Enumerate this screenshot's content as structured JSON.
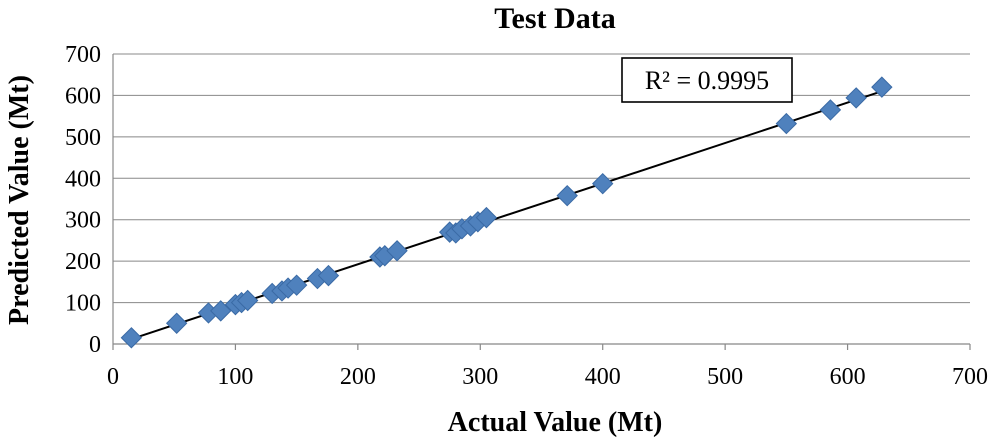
{
  "chart_data": {
    "type": "scatter",
    "title": "Test Data",
    "xlabel": "Actual Value (Mt)",
    "ylabel": "Predicted Value (Mt)",
    "xlim": [
      0,
      700
    ],
    "ylim": [
      0,
      700
    ],
    "xticks": [
      0,
      100,
      200,
      300,
      400,
      500,
      600,
      700
    ],
    "yticks": [
      0,
      100,
      200,
      300,
      400,
      500,
      600,
      700
    ],
    "grid": "horizontal",
    "marker_color": "#4F81BD",
    "marker_edge_color": "#3A6AA5",
    "trendline": {
      "type": "linear",
      "from": [
        15,
        12
      ],
      "to": [
        630,
        612
      ],
      "color": "#000000"
    },
    "annotation": "R² = 0.9995",
    "points": [
      [
        15,
        15
      ],
      [
        52,
        50
      ],
      [
        78,
        75
      ],
      [
        88,
        80
      ],
      [
        100,
        95
      ],
      [
        105,
        100
      ],
      [
        110,
        105
      ],
      [
        130,
        122
      ],
      [
        138,
        128
      ],
      [
        143,
        135
      ],
      [
        150,
        142
      ],
      [
        167,
        158
      ],
      [
        176,
        165
      ],
      [
        218,
        210
      ],
      [
        222,
        213
      ],
      [
        232,
        225
      ],
      [
        275,
        270
      ],
      [
        280,
        268
      ],
      [
        285,
        278
      ],
      [
        292,
        285
      ],
      [
        298,
        295
      ],
      [
        305,
        305
      ],
      [
        371,
        358
      ],
      [
        400,
        387
      ],
      [
        550,
        532
      ],
      [
        586,
        565
      ],
      [
        607,
        594
      ],
      [
        628,
        620
      ]
    ]
  }
}
